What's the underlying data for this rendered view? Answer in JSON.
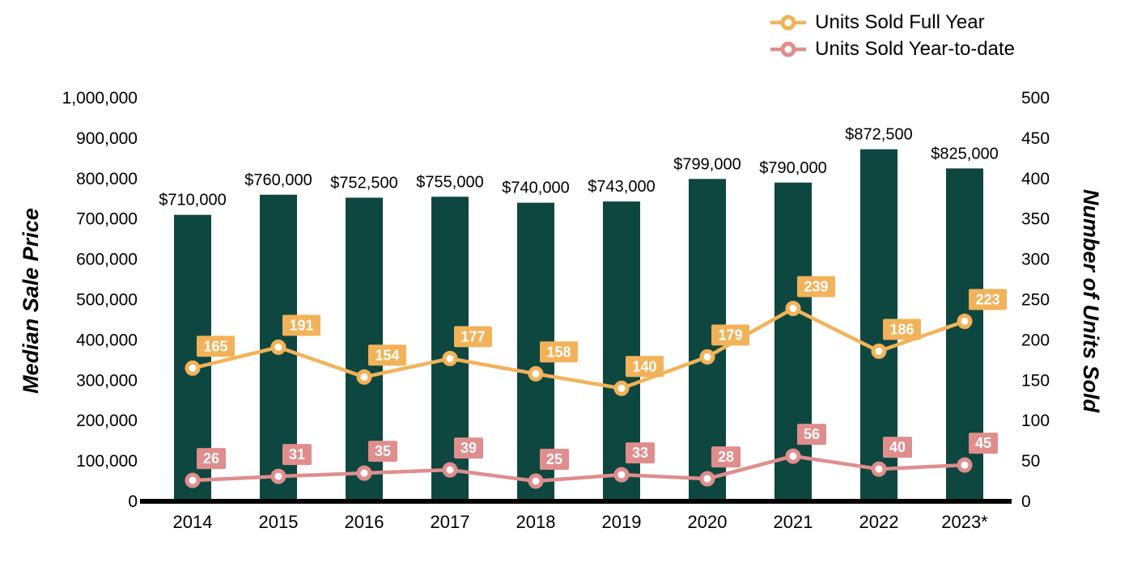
{
  "legend": {
    "items": [
      {
        "label": "Units Sold Full Year"
      },
      {
        "label": "Units Sold Year-to-date"
      }
    ]
  },
  "chart_data": {
    "type": "combo: bar + line (dual axis)",
    "categories": [
      "2014",
      "2015",
      "2016",
      "2017",
      "2018",
      "2019",
      "2020",
      "2021",
      "2022",
      "2023*"
    ],
    "bar_series": {
      "name": "Median Sale Price",
      "axis": "left",
      "color": "#0E4740",
      "values": [
        710000,
        760000,
        752500,
        755000,
        740000,
        743000,
        799000,
        790000,
        872500,
        825000
      ],
      "labels": [
        "$710,000",
        "$760,000",
        "$752,500",
        "$755,000",
        "$740,000",
        "$743,000",
        "$799,000",
        "$790,000",
        "$872,500",
        "$825,000"
      ]
    },
    "line_series": [
      {
        "name": "Units Sold Full Year",
        "axis": "right",
        "color": "#F2B259",
        "values": [
          165,
          191,
          154,
          177,
          158,
          140,
          179,
          239,
          186,
          223
        ]
      },
      {
        "name": "Units Sold Year-to-date",
        "axis": "right",
        "color": "#E08D8D",
        "values": [
          26,
          31,
          35,
          39,
          25,
          33,
          28,
          56,
          40,
          45
        ]
      }
    ],
    "left_axis": {
      "title": "Median Sale Price",
      "min": 0,
      "max": 1000000,
      "ticks": [
        "0",
        "100,000",
        "200,000",
        "300,000",
        "400,000",
        "500,000",
        "600,000",
        "700,000",
        "800,000",
        "900,000",
        "1,000,000"
      ]
    },
    "right_axis": {
      "title": "Number of Units Sold",
      "min": 0,
      "max": 500,
      "ticks": [
        "0",
        "50",
        "100",
        "150",
        "200",
        "250",
        "300",
        "350",
        "400",
        "450",
        "500"
      ]
    },
    "grid": false,
    "legend_position": "top-right",
    "background": "#FFFFFF",
    "axis_line_color": "#000000"
  }
}
